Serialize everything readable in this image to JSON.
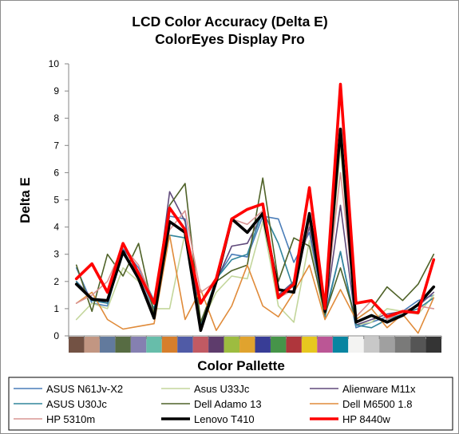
{
  "chart_data": {
    "type": "line",
    "title": "LCD Color Accuracy (Delta E)",
    "subtitle": "ColorEyes Display Pro",
    "xlabel": "Color Pallette",
    "ylabel": "Delta E",
    "ylim": [
      0,
      10
    ],
    "yticks": [
      0,
      1,
      2,
      3,
      4,
      5,
      6,
      7,
      8,
      9,
      10
    ],
    "grid": false,
    "legend_position": "bottom",
    "patch_colors": [
      "#735244",
      "#c29682",
      "#627a9d",
      "#576c43",
      "#8580b1",
      "#67bdaa",
      "#d67e2c",
      "#505ba6",
      "#c15a63",
      "#5e3c6c",
      "#9dbc40",
      "#e0a32e",
      "#383d96",
      "#469449",
      "#af363c",
      "#e7c71f",
      "#bb5695",
      "#0885a1",
      "#f3f3f2",
      "#c8c8c8",
      "#a0a0a0",
      "#7a7a79",
      "#555555",
      "#343434"
    ],
    "series": [
      {
        "name": "ASUS N61Jv-X2",
        "color": "#4a7db8",
        "width": 1.6,
        "values": [
          2.5,
          1.2,
          1.1,
          3.2,
          2.5,
          1.3,
          4.4,
          4.3,
          0.4,
          2.1,
          3.0,
          2.9,
          4.4,
          4.3,
          2.7,
          3.8,
          0.8,
          3.1,
          0.3,
          0.5,
          0.7,
          0.9,
          1.3,
          1.5
        ]
      },
      {
        "name": "Asus U33Jc",
        "color": "#c3d69b",
        "width": 1.6,
        "values": [
          0.6,
          1.2,
          1.0,
          2.5,
          2.0,
          1.0,
          1.0,
          3.8,
          0.4,
          1.6,
          2.2,
          2.1,
          4.2,
          1.1,
          0.5,
          3.5,
          0.6,
          6.9,
          0.4,
          0.5,
          1.0,
          0.9,
          0.8,
          1.5
        ]
      },
      {
        "name": "Alienware M11x",
        "color": "#604a7b",
        "width": 1.6,
        "values": [
          2.0,
          1.4,
          1.2,
          3.0,
          2.2,
          0.8,
          5.3,
          4.2,
          0.5,
          2.0,
          3.3,
          3.4,
          4.5,
          1.5,
          2.0,
          4.0,
          0.8,
          4.8,
          0.4,
          0.6,
          0.8,
          0.9,
          1.1,
          1.6
        ]
      },
      {
        "name": "ASUS U30Jc",
        "color": "#31859c",
        "width": 1.6,
        "values": [
          2.0,
          1.3,
          1.2,
          3.0,
          2.3,
          1.0,
          3.7,
          3.6,
          0.4,
          2.1,
          2.8,
          3.0,
          4.6,
          3.4,
          1.7,
          4.2,
          0.7,
          3.1,
          0.4,
          0.3,
          0.6,
          0.8,
          1.0,
          1.4
        ]
      },
      {
        "name": "Dell Adamo 13",
        "color": "#4f6228",
        "width": 1.6,
        "values": [
          2.6,
          0.9,
          3.0,
          2.2,
          3.4,
          0.8,
          4.8,
          5.6,
          0.5,
          2.0,
          2.4,
          2.6,
          5.8,
          2.0,
          3.6,
          3.3,
          0.8,
          2.5,
          0.6,
          1.0,
          1.8,
          1.3,
          1.9,
          3.0
        ]
      },
      {
        "name": "Dell M6500 1.8",
        "color": "#e08b3a",
        "width": 1.6,
        "values": [
          1.2,
          1.6,
          0.6,
          0.25,
          0.35,
          0.45,
          3.7,
          0.6,
          1.7,
          0.2,
          1.1,
          2.6,
          1.1,
          0.7,
          1.6,
          2.6,
          0.6,
          1.7,
          0.6,
          1.0,
          0.3,
          0.8,
          0.1,
          1.4
        ]
      },
      {
        "name": "HP 5310m",
        "color": "#d99594",
        "width": 1.6,
        "values": [
          1.2,
          1.5,
          2.0,
          3.3,
          2.6,
          1.2,
          3.9,
          4.6,
          1.6,
          2.0,
          4.3,
          4.1,
          4.6,
          1.4,
          1.7,
          4.2,
          0.9,
          6.0,
          0.7,
          1.3,
          0.6,
          0.9,
          1.1,
          1.0
        ]
      },
      {
        "name": "Lenovo T410",
        "color": "#000000",
        "width": 3.6,
        "values": [
          1.9,
          1.35,
          1.3,
          3.1,
          2.1,
          0.65,
          4.2,
          3.8,
          0.2,
          2.0,
          4.3,
          3.8,
          4.5,
          1.7,
          1.6,
          4.5,
          0.9,
          7.6,
          0.5,
          0.75,
          0.5,
          0.75,
          1.15,
          1.8
        ]
      },
      {
        "name": "HP 8440w",
        "color": "#ff0000",
        "width": 3.6,
        "values": [
          2.1,
          2.65,
          1.6,
          3.4,
          2.3,
          1.2,
          4.7,
          3.9,
          1.2,
          2.1,
          4.3,
          4.65,
          4.85,
          1.4,
          1.9,
          5.45,
          1.0,
          9.25,
          1.2,
          1.3,
          0.7,
          0.9,
          0.85,
          2.8
        ]
      }
    ]
  }
}
